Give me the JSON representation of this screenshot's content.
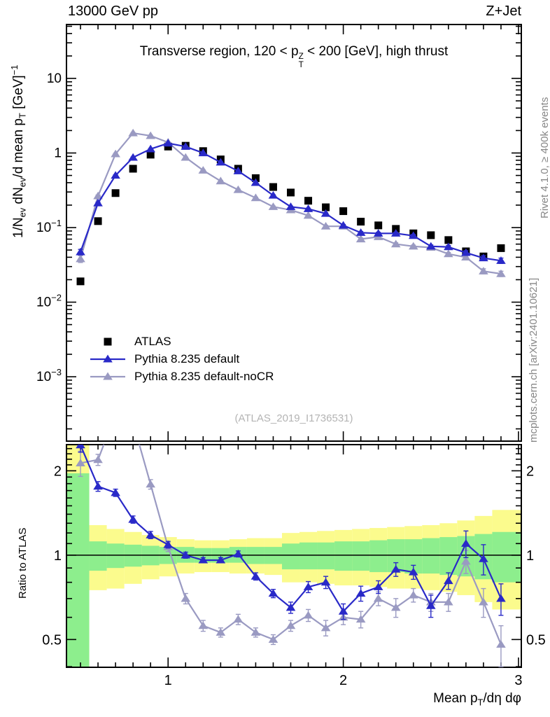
{
  "header": {
    "left": "13000 GeV pp",
    "right": "Z+Jet"
  },
  "title_segments": [
    {
      "t": "Transverse region, 120 < p"
    },
    {
      "t": "Z,T",
      "s": "stack"
    },
    {
      "t": " < 200 [GeV], high thrust"
    }
  ],
  "watermark": "(ATLAS_2019_I1736531)",
  "side_notes": {
    "rivet": "Rivet 4.1.0, ≥ 400k events",
    "mcplots": "mcplots.cern.ch [arXiv:2401.10621]"
  },
  "colors": {
    "atlas": "#000000",
    "pythia_default": "#2929c8",
    "pythia_nocr": "#9a9ac2",
    "band_yellow": "#fbfb8d",
    "band_green": "#8dee8d",
    "frame": "#000000",
    "watermark": "#b4b4b4",
    "margin_text": "#878787"
  },
  "axes": {
    "x": {
      "label_segments": [
        {
          "t": "Mean p"
        },
        {
          "t": "T",
          "s": "sub"
        },
        {
          "t": "/dη dφ"
        }
      ],
      "range": [
        0.42,
        3.016
      ],
      "major_ticks": [
        {
          "v": 1,
          "t": "1"
        },
        {
          "v": 2,
          "t": "2"
        },
        {
          "v": 3,
          "t": "3"
        }
      ],
      "minor_step": 0.1
    },
    "main_y": {
      "label_segments": [
        {
          "t": "1/N"
        },
        {
          "t": "ev",
          "s": "sub"
        },
        {
          "t": " dN"
        },
        {
          "t": "ev",
          "s": "sub"
        },
        {
          "t": "/d mean p"
        },
        {
          "t": "T",
          "s": "sub"
        },
        {
          "t": " [GeV]"
        },
        {
          "t": "−1",
          "s": "sup"
        }
      ],
      "scale": "log",
      "range": [
        0.000137,
        52.8
      ],
      "major_ticks": [
        {
          "v": 10,
          "t": "10"
        },
        {
          "v": 1,
          "t": "1"
        },
        {
          "v": 0.1,
          "t": "10",
          "e": "−1"
        },
        {
          "v": 0.01,
          "t": "10",
          "e": "−2"
        },
        {
          "v": 0.001,
          "t": "10",
          "e": "−3"
        }
      ]
    },
    "ratio_y": {
      "label": "Ratio to ATLAS",
      "scale": "log",
      "range": [
        0.398,
        2.48
      ],
      "major_ticks": [
        {
          "v": 2,
          "t": "2"
        },
        {
          "v": 1,
          "t": "1"
        },
        {
          "v": 0.5,
          "t": "0.5"
        }
      ]
    }
  },
  "legend": [
    {
      "label": "ATLAS",
      "marker": "square",
      "color": "#000000",
      "line": false
    },
    {
      "label": "Pythia 8.235 default",
      "marker": "triangle",
      "color": "#2929c8",
      "line": true
    },
    {
      "label": "Pythia 8.235 default-noCR",
      "marker": "triangle",
      "color": "#9a9ac2",
      "line": true
    }
  ],
  "chart_data": [
    {
      "type": "line",
      "panel": "main",
      "title": "Transverse region, 120 < pTZ < 200 [GeV], high thrust",
      "ylabel": "1/Nev dNev/d mean pT [GeV]^-1",
      "yscale": "log",
      "ylim": [
        0.000137,
        52.8
      ],
      "xlim": [
        0.42,
        3.016
      ],
      "x": [
        0.5,
        0.6,
        0.7,
        0.8,
        0.9,
        1.0,
        1.1,
        1.2,
        1.3,
        1.4,
        1.5,
        1.6,
        1.7,
        1.8,
        1.9,
        2.0,
        2.1,
        2.2,
        2.3,
        2.4,
        2.5,
        2.6,
        2.7,
        2.8,
        2.9
      ],
      "series": [
        {
          "name": "ATLAS",
          "marker": "square",
          "color": "#000000",
          "line": false,
          "values": [
            0.019,
            0.122,
            0.29,
            0.615,
            0.95,
            1.22,
            1.25,
            1.06,
            0.82,
            0.615,
            0.46,
            0.35,
            0.295,
            0.229,
            0.187,
            0.166,
            0.12,
            0.107,
            0.096,
            0.0836,
            0.079,
            0.068,
            0.048,
            0.041,
            0.053
          ],
          "errors": []
        },
        {
          "name": "Pythia 8.235 default-noCR",
          "marker": "triangle",
          "color": "#9a9ac2",
          "line": true,
          "values": [
            0.038,
            0.265,
            0.97,
            1.85,
            1.7,
            1.39,
            0.87,
            0.585,
            0.42,
            0.321,
            0.25,
            0.19,
            0.172,
            0.145,
            0.104,
            0.104,
            0.07,
            0.075,
            0.06,
            0.056,
            0.054,
            0.0443,
            0.04,
            0.026,
            0.024
          ],
          "errors": [
            0.004,
            0.008,
            0.018,
            0.026,
            0.024,
            0.02,
            0.014,
            0.01,
            0.008,
            0.006,
            0.005,
            0.0045,
            0.004,
            0.0035,
            0.003,
            0.003,
            0.0025,
            0.0025,
            0.0025,
            0.0022,
            0.0022,
            0.002,
            0.002,
            0.002,
            0.002
          ]
        },
        {
          "name": "Pythia 8.235 default",
          "marker": "triangle",
          "color": "#2929c8",
          "line": true,
          "values": [
            0.047,
            0.213,
            0.5,
            0.87,
            1.13,
            1.35,
            1.22,
            1.0,
            0.75,
            0.572,
            0.4,
            0.27,
            0.19,
            0.178,
            0.154,
            0.107,
            0.0854,
            0.0836,
            0.0836,
            0.0777,
            0.056,
            0.055,
            0.046,
            0.039,
            0.036
          ],
          "errors": [
            0.004,
            0.006,
            0.01,
            0.014,
            0.016,
            0.016,
            0.014,
            0.011,
            0.009,
            0.007,
            0.006,
            0.005,
            0.004,
            0.004,
            0.0035,
            0.003,
            0.003,
            0.003,
            0.003,
            0.003,
            0.0025,
            0.0025,
            0.003,
            0.003,
            0.003
          ]
        }
      ]
    },
    {
      "type": "line",
      "panel": "ratio",
      "ylabel": "Ratio to ATLAS",
      "yscale": "log",
      "ylim": [
        0.398,
        2.48
      ],
      "xlim": [
        0.42,
        3.016
      ],
      "reference_line": 1,
      "x": [
        0.5,
        0.6,
        0.7,
        0.8,
        0.9,
        1.0,
        1.1,
        1.2,
        1.3,
        1.4,
        1.5,
        1.6,
        1.7,
        1.8,
        1.9,
        2.0,
        2.1,
        2.2,
        2.3,
        2.4,
        2.5,
        2.6,
        2.7,
        2.8,
        2.9
      ],
      "series": [
        {
          "name": "Pythia 8.235 default-noCR / ATLAS",
          "marker": "triangle",
          "color": "#9a9ac2",
          "line": true,
          "values": [
            2.13,
            2.19,
            3.2,
            2.98,
            1.79,
            1.07,
            0.7,
            0.56,
            0.53,
            0.59,
            0.53,
            0.5,
            0.56,
            0.61,
            0.55,
            0.6,
            0.59,
            0.7,
            0.65,
            0.72,
            0.68,
            0.68,
            0.95,
            0.68,
            0.48
          ],
          "errors": [
            0.22,
            0.1,
            0.3,
            0.3,
            0.07,
            0.04,
            0.03,
            0.025,
            0.02,
            0.025,
            0.02,
            0.02,
            0.025,
            0.03,
            0.035,
            0.035,
            0.04,
            0.04,
            0.05,
            0.04,
            0.05,
            0.05,
            0.09,
            0.08,
            0.08
          ]
        },
        {
          "name": "Pythia 8.235 default / ATLAS",
          "marker": "triangle",
          "color": "#2929c8",
          "line": true,
          "values": [
            2.47,
            1.76,
            1.67,
            1.34,
            1.18,
            1.09,
            1.0,
            0.96,
            0.96,
            1.01,
            0.84,
            0.73,
            0.65,
            0.77,
            0.8,
            0.63,
            0.73,
            0.77,
            0.89,
            0.87,
            0.66,
            0.81,
            1.1,
            0.97,
            0.7
          ],
          "errors": [
            0.14,
            0.07,
            0.05,
            0.04,
            0.035,
            0.03,
            0.025,
            0.02,
            0.02,
            0.025,
            0.025,
            0.025,
            0.03,
            0.035,
            0.04,
            0.04,
            0.045,
            0.04,
            0.05,
            0.05,
            0.06,
            0.055,
            0.12,
            0.12,
            0.09
          ]
        }
      ],
      "bands": {
        "bin_edges": [
          0.42,
          0.55,
          0.65,
          0.75,
          0.85,
          0.95,
          1.05,
          1.15,
          1.25,
          1.35,
          1.45,
          1.55,
          1.65,
          1.75,
          1.85,
          1.95,
          2.05,
          2.15,
          2.25,
          2.35,
          2.45,
          2.55,
          2.65,
          2.75,
          2.85,
          3.016
        ],
        "yellow": [
          [
            0.4,
            2.48
          ],
          [
            0.75,
            1.28
          ],
          [
            0.76,
            1.24
          ],
          [
            0.79,
            1.21
          ],
          [
            0.82,
            1.18
          ],
          [
            0.84,
            1.16
          ],
          [
            0.86,
            1.14
          ],
          [
            0.87,
            1.13
          ],
          [
            0.87,
            1.13
          ],
          [
            0.86,
            1.14
          ],
          [
            0.86,
            1.15
          ],
          [
            0.85,
            1.15
          ],
          [
            0.8,
            1.2
          ],
          [
            0.8,
            1.21
          ],
          [
            0.79,
            1.22
          ],
          [
            0.78,
            1.23
          ],
          [
            0.78,
            1.24
          ],
          [
            0.77,
            1.25
          ],
          [
            0.76,
            1.26
          ],
          [
            0.76,
            1.27
          ],
          [
            0.75,
            1.28
          ],
          [
            0.74,
            1.3
          ],
          [
            0.72,
            1.33
          ],
          [
            0.68,
            1.38
          ],
          [
            0.64,
            1.45
          ]
        ],
        "green": [
          [
            0.4,
            1.96
          ],
          [
            0.88,
            1.12
          ],
          [
            0.9,
            1.1
          ],
          [
            0.91,
            1.09
          ],
          [
            0.92,
            1.08
          ],
          [
            0.93,
            1.07
          ],
          [
            0.94,
            1.07
          ],
          [
            0.94,
            1.06
          ],
          [
            0.94,
            1.06
          ],
          [
            0.94,
            1.07
          ],
          [
            0.93,
            1.07
          ],
          [
            0.93,
            1.07
          ],
          [
            0.89,
            1.1
          ],
          [
            0.89,
            1.11
          ],
          [
            0.89,
            1.11
          ],
          [
            0.88,
            1.12
          ],
          [
            0.88,
            1.12
          ],
          [
            0.87,
            1.13
          ],
          [
            0.87,
            1.14
          ],
          [
            0.86,
            1.14
          ],
          [
            0.86,
            1.15
          ],
          [
            0.85,
            1.16
          ],
          [
            0.84,
            1.17
          ],
          [
            0.82,
            1.19
          ],
          [
            0.8,
            1.21
          ]
        ]
      }
    }
  ]
}
